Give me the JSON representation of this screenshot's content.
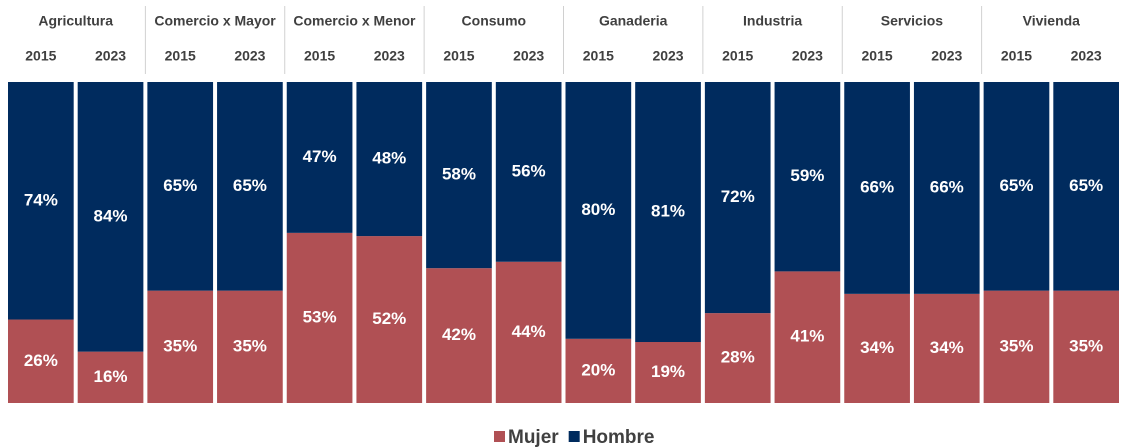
{
  "chart_data": {
    "type": "stacked_bar_100",
    "groups": [
      "Agricultura",
      "Comercio x Mayor",
      "Comercio x Menor",
      "Consumo",
      "Ganaderia",
      "Industria",
      "Servicios",
      "Vivienda"
    ],
    "categories": [
      "2015",
      "2023",
      "2015",
      "2023",
      "2015",
      "2023",
      "2015",
      "2023",
      "2015",
      "2023",
      "2015",
      "2023",
      "2015",
      "2023",
      "2015",
      "2023"
    ],
    "ylim": [
      0,
      100
    ],
    "legend": "bottom",
    "series": [
      {
        "name": "Mujer",
        "color": "#b05054",
        "values": [
          26,
          16,
          35,
          35,
          53,
          52,
          42,
          44,
          20,
          19,
          28,
          41,
          34,
          34,
          35,
          35
        ],
        "value_labels": [
          "26%",
          "16%",
          "35%",
          "35%",
          "53%",
          "52%",
          "42%",
          "44%",
          "20%",
          "19%",
          "28%",
          "41%",
          "34%",
          "34%",
          "35%",
          "35%"
        ]
      },
      {
        "name": "Hombre",
        "color": "#002b5e",
        "values": [
          74,
          84,
          65,
          65,
          47,
          48,
          58,
          56,
          80,
          81,
          72,
          59,
          66,
          66,
          65,
          65
        ],
        "value_labels": [
          "74%",
          "84%",
          "65%",
          "65%",
          "47%",
          "48%",
          "58%",
          "56%",
          "80%",
          "81%",
          "72%",
          "59%",
          "66%",
          "66%",
          "65%",
          "65%"
        ]
      }
    ]
  }
}
